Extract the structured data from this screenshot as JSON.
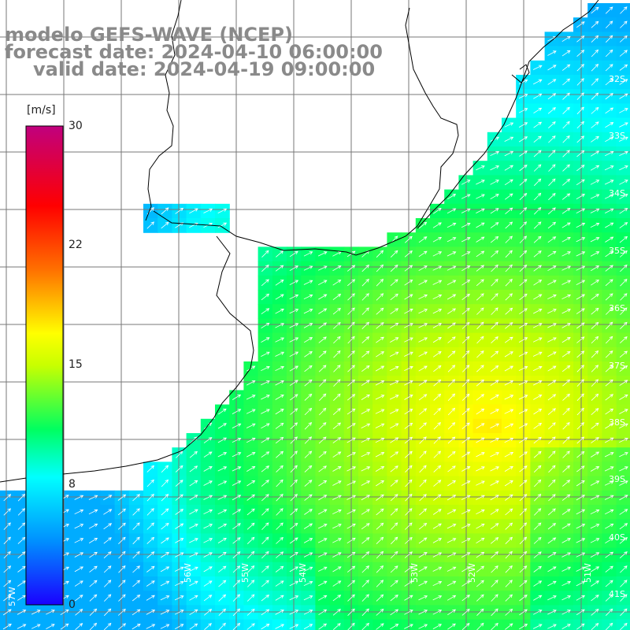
{
  "title": {
    "line1": "modelo GEFS-WAVE (NCEP)",
    "line2": "forecast date: 2024-04-10 06:00:00",
    "line3": "valid date: 2024-04-19 09:00:00"
  },
  "colorbar": {
    "units": "[m/s]",
    "ticks": [
      "30",
      "22",
      "15",
      "8",
      "0"
    ],
    "stops": [
      {
        "v": 0,
        "c": "#1a00ff"
      },
      {
        "v": 4,
        "c": "#0090ff"
      },
      {
        "v": 8,
        "c": "#00ffff"
      },
      {
        "v": 11,
        "c": "#00ff60"
      },
      {
        "v": 15,
        "c": "#c8ff00"
      },
      {
        "v": 17,
        "c": "#ffff00"
      },
      {
        "v": 21,
        "c": "#ff7000"
      },
      {
        "v": 25,
        "c": "#ff0000"
      },
      {
        "v": 30,
        "c": "#c0007e"
      }
    ]
  },
  "lat_labels": [
    "32S",
    "33S",
    "34S",
    "35S",
    "36S",
    "37S",
    "38S",
    "39S",
    "40S",
    "41S"
  ],
  "lon_labels": [
    "57W",
    "56W",
    "55W",
    "54W",
    "53W",
    "52W",
    "51W"
  ],
  "wind": {
    "parameter": "wind speed",
    "units": "m/s",
    "direction": "from southwest toward northeast",
    "range_m_s": [
      5,
      19
    ]
  }
}
